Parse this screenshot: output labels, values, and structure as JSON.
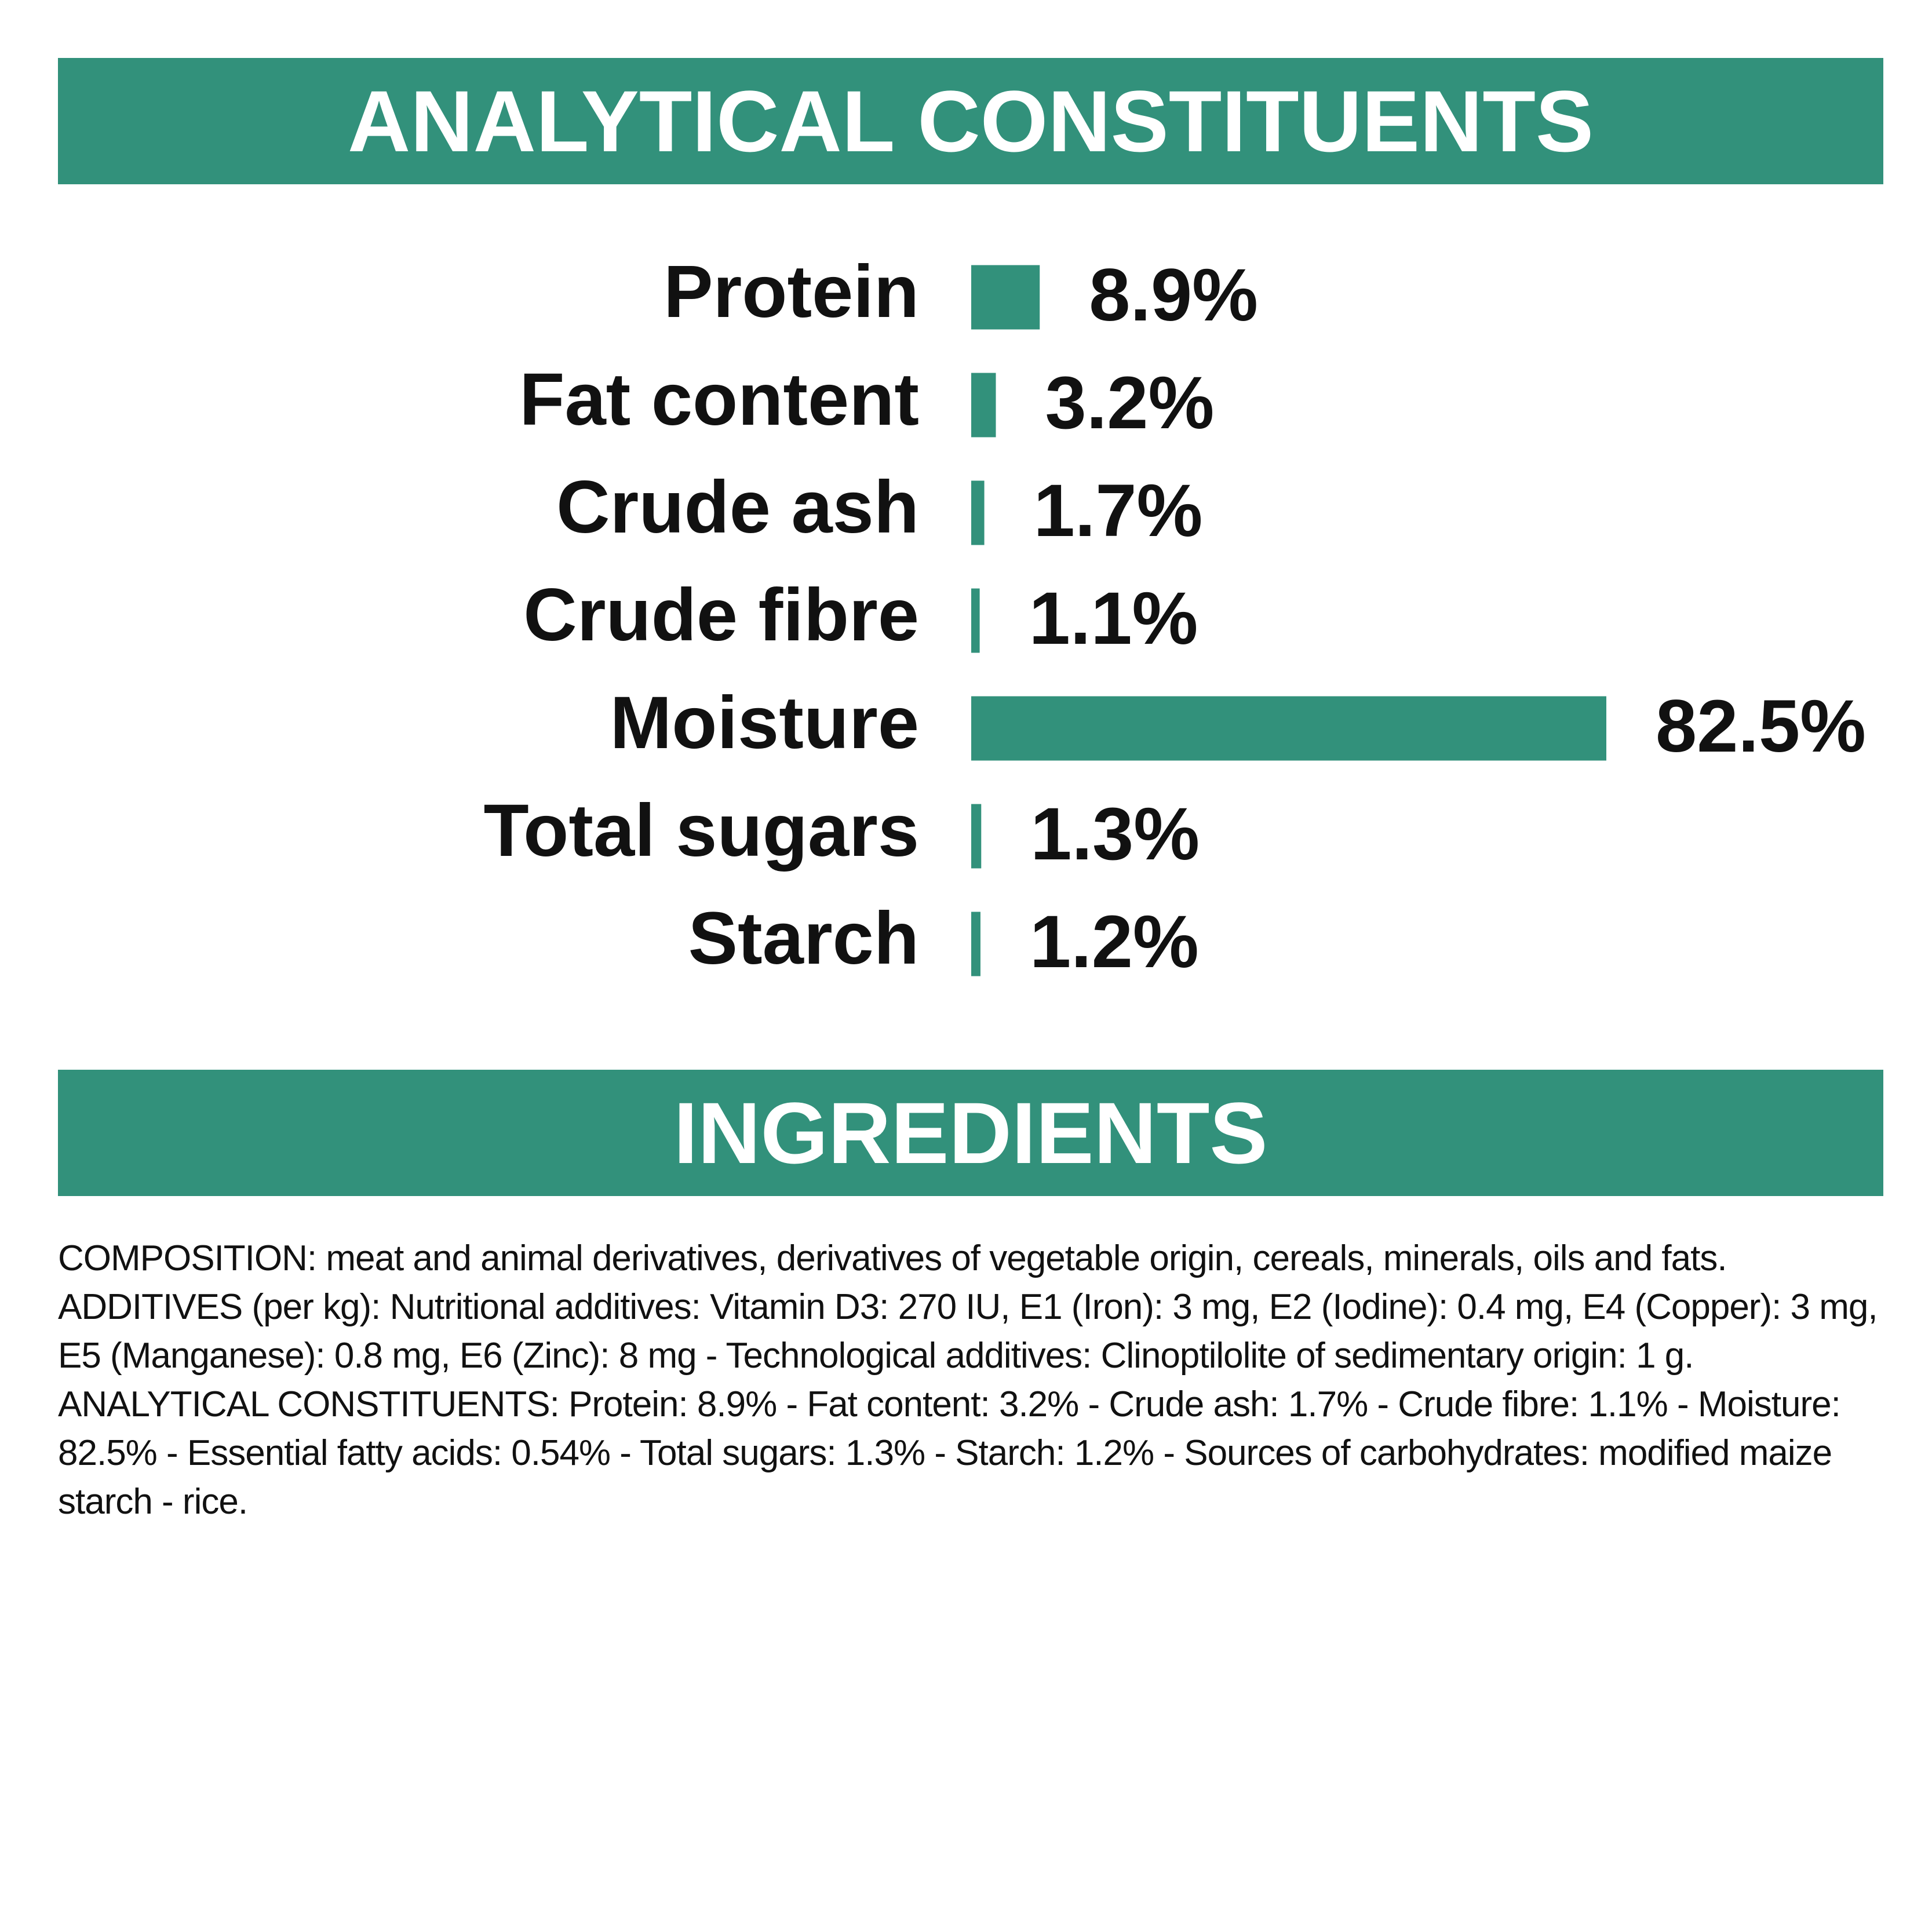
{
  "chart_data": {
    "type": "bar",
    "orientation": "horizontal",
    "title": "ANALYTICAL CONSTITUENTS",
    "categories": [
      "Protein",
      "Fat content",
      "Crude ash",
      "Crude fibre",
      "Moisture",
      "Total sugars",
      "Starch"
    ],
    "values": [
      8.9,
      3.2,
      1.7,
      1.1,
      82.5,
      1.3,
      1.2
    ],
    "value_labels": [
      "8.9%",
      "3.2%",
      "1.7%",
      "1.1%",
      "82.5%",
      "1.3%",
      "1.2%"
    ],
    "color": "#32917b"
  },
  "ingredients": {
    "title": "INGREDIENTS",
    "text": "COMPOSITION: meat and animal derivatives, derivatives of vegetable origin, cereals, minerals, oils and fats. ADDITIVES (per kg): Nutritional additives: Vitamin D3: 270 IU, E1 (Iron): 3 mg, E2 (Iodine): 0.4 mg, E4 (Copper): 3 mg, E5 (Manganese): 0.8 mg, E6 (Zinc): 8 mg - Technological additives: Clinoptilolite of sedimentary origin: 1 g. ANALYTICAL CONSTITUENTS: Protein: 8.9% - Fat content: 3.2% - Crude ash: 1.7% - Crude fibre: 1.1% - Moisture: 82.5% - Essential fatty acids: 0.54% - Total sugars: 1.3% - Starch: 1.2% - Sources of carbohydrates: modified maize starch - rice."
  }
}
